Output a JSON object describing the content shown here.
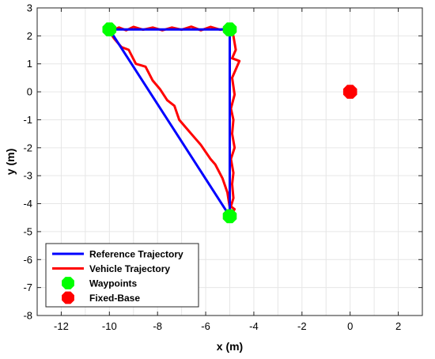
{
  "chart_data": {
    "type": "line",
    "xlabel": "x (m)",
    "ylabel": "y (m)",
    "xlim": [
      -13,
      3
    ],
    "ylim": [
      -8,
      3
    ],
    "xticks": [
      -12,
      -10,
      -8,
      -6,
      -4,
      -2,
      0,
      2
    ],
    "yticks": [
      3,
      2,
      1,
      0,
      -1,
      -2,
      -3,
      -4,
      -5,
      -6,
      -7,
      -8
    ],
    "grid": true,
    "legend_position": "bottom-left",
    "series": [
      {
        "name": "Reference Trajectory",
        "color": "#0000ff",
        "marker": "none",
        "x": [
          -10,
          -5,
          -5,
          -10
        ],
        "y": [
          2.23,
          2.23,
          -4.45,
          2.23
        ]
      },
      {
        "name": "Vehicle Trajectory",
        "color": "#ff0000",
        "marker": "none",
        "x": [
          -10,
          -9.6,
          -9.3,
          -9.0,
          -8.6,
          -8.2,
          -7.8,
          -7.4,
          -7.0,
          -6.6,
          -6.2,
          -5.8,
          -5.4,
          -5.0,
          -4.85,
          -4.75,
          -4.9,
          -4.6,
          -4.9,
          -4.8,
          -4.95,
          -4.85,
          -4.9,
          -4.8,
          -4.95,
          -4.85,
          -4.9,
          -4.85,
          -4.95,
          -4.8,
          -4.95,
          -5.1,
          -5.3,
          -5.6,
          -5.8,
          -6.2,
          -6.5,
          -6.8,
          -7.1,
          -7.3,
          -7.6,
          -7.9,
          -8.2,
          -8.5,
          -8.9,
          -9.2,
          -9.5,
          -9.8,
          -10
        ],
        "y": [
          2.15,
          2.3,
          2.2,
          2.32,
          2.22,
          2.3,
          2.2,
          2.3,
          2.22,
          2.33,
          2.2,
          2.32,
          2.22,
          2.28,
          2.0,
          1.5,
          1.2,
          1.1,
          0.5,
          -0.1,
          -0.6,
          -1.0,
          -1.5,
          -2.0,
          -2.4,
          -2.9,
          -3.3,
          -3.8,
          -4.1,
          -4.2,
          -4.4,
          -3.6,
          -3.1,
          -2.6,
          -2.4,
          -1.9,
          -1.6,
          -1.3,
          -1.0,
          -0.5,
          -0.3,
          0.1,
          0.4,
          0.9,
          1.0,
          1.5,
          1.6,
          1.9,
          2.15
        ]
      },
      {
        "name": "Waypoints",
        "color": "#00ff00",
        "marker": "octagon",
        "line": "none",
        "x": [
          -10,
          -5,
          -5
        ],
        "y": [
          2.23,
          2.23,
          -4.45
        ]
      },
      {
        "name": "Fixed-Base",
        "color": "#ff0000",
        "marker": "octagon",
        "line": "none",
        "x": [
          0
        ],
        "y": [
          0
        ]
      }
    ]
  }
}
